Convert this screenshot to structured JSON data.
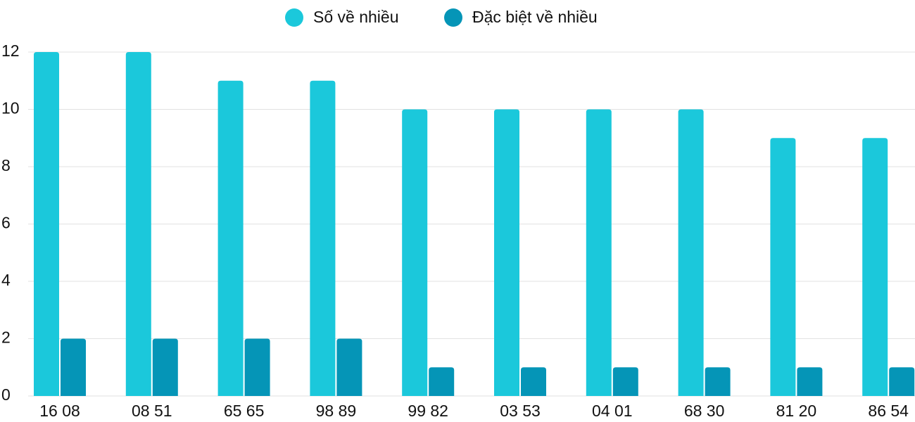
{
  "chart_data": {
    "type": "bar",
    "categories": [
      "16 08",
      "08 51",
      "65 65",
      "98 89",
      "99 82",
      "03 53",
      "04 01",
      "68 30",
      "81 20",
      "86 54"
    ],
    "series": [
      {
        "name": "Số về nhiều",
        "color": "#1bc8db",
        "values": [
          12,
          12,
          11,
          11,
          10,
          10,
          10,
          10,
          9,
          9
        ]
      },
      {
        "name": "Đặc biệt về nhiều",
        "color": "#0595b7",
        "values": [
          2,
          2,
          2,
          2,
          1,
          1,
          1,
          1,
          1,
          1
        ]
      }
    ],
    "ylim": [
      0,
      12
    ],
    "yticks": [
      0,
      2,
      4,
      6,
      8,
      10,
      12
    ],
    "grid": true,
    "legend": "top"
  }
}
